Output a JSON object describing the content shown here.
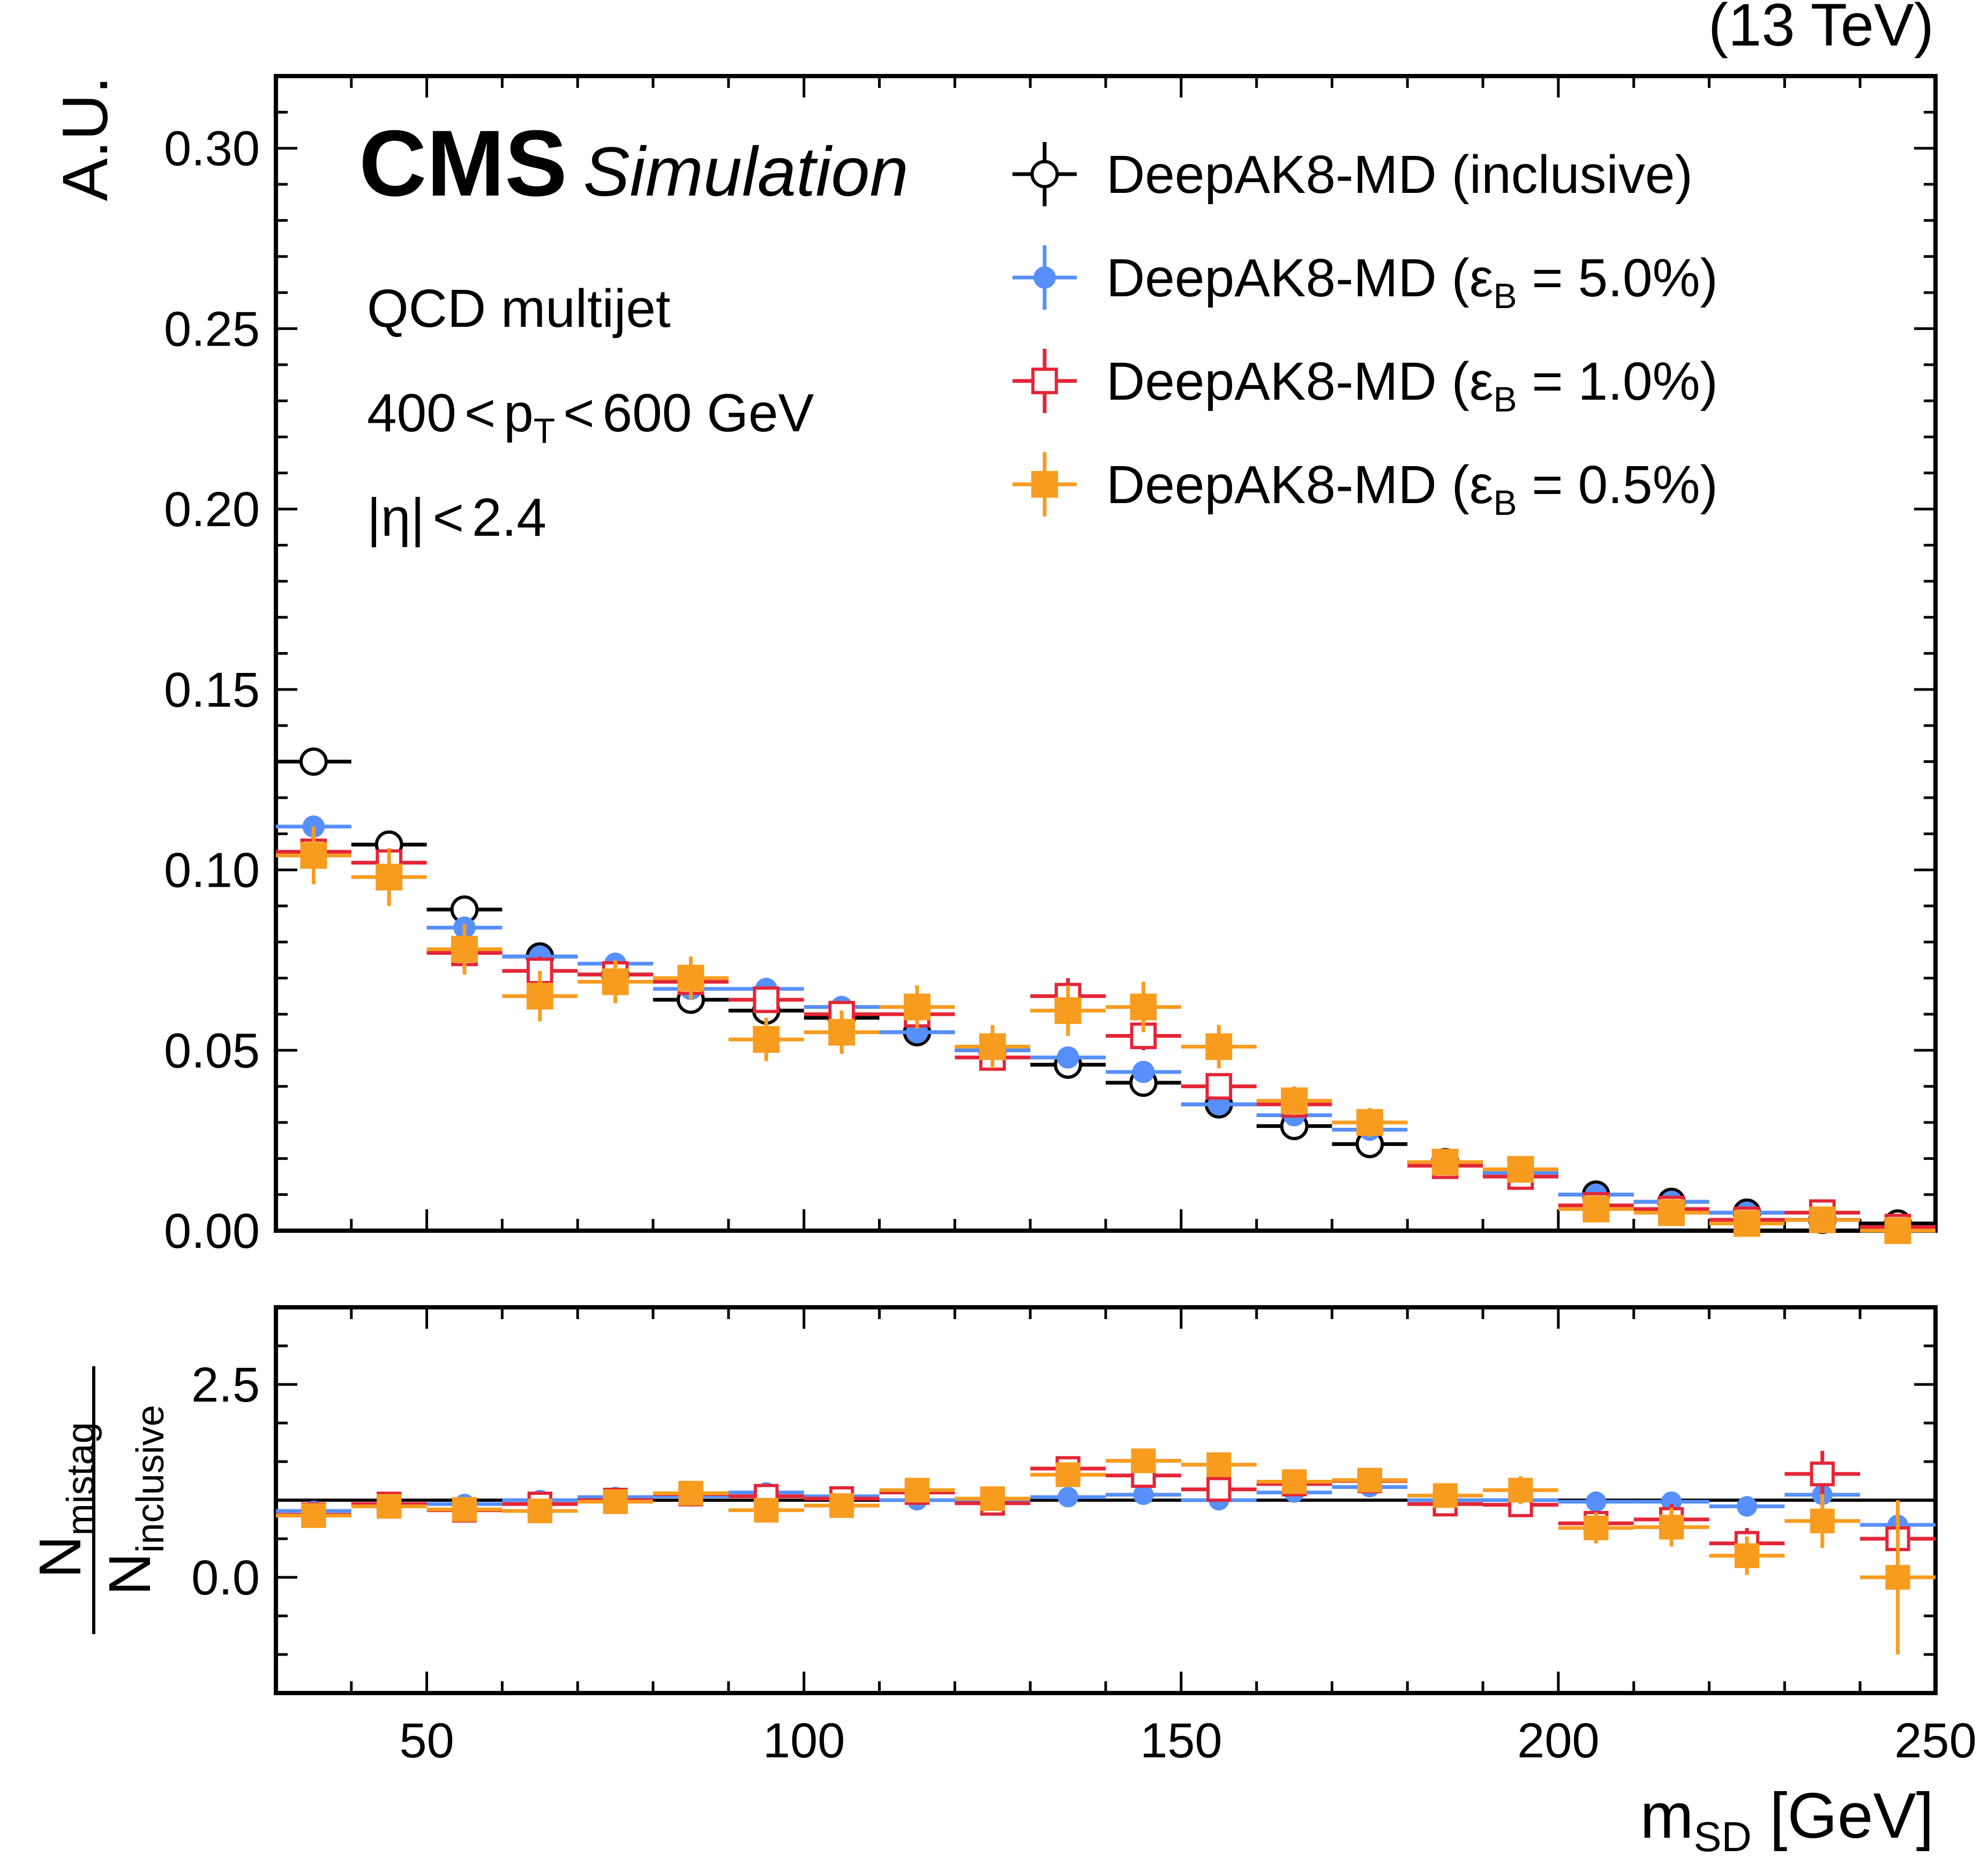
{
  "energy_label": "(13 TeV)",
  "cms_label": "CMS",
  "simulation_label": "Simulation",
  "info": {
    "process": "QCD multijet",
    "pt_pre": "400",
    "pt_lt": "<",
    "pt_p": "p",
    "pt_sub": "T",
    "pt_post": "600 GeV",
    "eta": "|η|",
    "eta_cut": "2.4"
  },
  "legend": {
    "entries": [
      {
        "main": "DeepAK8-MD (inclusive)",
        "eps": "",
        "sub": "",
        "rest": ""
      },
      {
        "main": "DeepAK8-MD (",
        "eps": "ε",
        "sub": "B",
        "rest": " = 5.0%)"
      },
      {
        "main": "DeepAK8-MD (",
        "eps": "ε",
        "sub": "B",
        "rest": " = 1.0%)"
      },
      {
        "main": "DeepAK8-MD (",
        "eps": "ε",
        "sub": "B",
        "rest": " = 0.5%)"
      }
    ]
  },
  "y_label_top": "A.U.",
  "y_label_ratio_num": "N",
  "y_label_ratio_num_sub": "mistag",
  "y_label_ratio_den": "N",
  "y_label_ratio_den_sub": "inclusive",
  "x_label_main": "m",
  "x_label_sub": "SD",
  "x_label_unit": " [GeV]",
  "colors": {
    "inclusive": "#000000",
    "eff5": "#5790fc",
    "eff1": "#e42536",
    "eff05": "#f89c20",
    "axis": "#000000"
  },
  "chart_data": [
    {
      "type": "scatter",
      "panel": "main",
      "xlabel": "m_SD [GeV]",
      "ylabel": "A.U.",
      "xlim": [
        30,
        250
      ],
      "ylim": [
        0,
        0.32
      ],
      "x_ticks": [
        50,
        100,
        150,
        200,
        250
      ],
      "y_ticks": [
        "0.00",
        "0.05",
        "0.10",
        "0.15",
        "0.20",
        "0.25",
        "0.30"
      ],
      "bin_edges": [
        30,
        40,
        50,
        60,
        70,
        80,
        90,
        100,
        110,
        120,
        130,
        140,
        150,
        160,
        170,
        180,
        190,
        200,
        210,
        220,
        230,
        240,
        250
      ],
      "x": [
        35,
        45,
        55,
        65,
        75,
        85,
        95,
        105,
        115,
        125,
        135,
        145,
        155,
        165,
        175,
        185,
        195,
        205,
        215,
        225,
        235,
        245
      ],
      "series": [
        {
          "name": "DeepAK8-MD (inclusive)",
          "marker": "open-circle",
          "color": "#000000",
          "values": [
            0.13,
            0.107,
            0.089,
            0.076,
            0.071,
            0.064,
            0.061,
            0.059,
            0.055,
            0.05,
            0.046,
            0.041,
            0.035,
            0.029,
            0.024,
            0.019,
            0.016,
            0.01,
            0.008,
            0.005,
            0.003,
            0.002
          ],
          "errors": [
            0,
            0,
            0,
            0,
            0,
            0,
            0,
            0,
            0,
            0,
            0,
            0,
            0,
            0,
            0,
            0,
            0,
            0,
            0,
            0,
            0,
            0
          ]
        },
        {
          "name": "DeepAK8-MD (εB = 5.0%)",
          "marker": "filled-circle",
          "color": "#5790fc",
          "values": [
            0.112,
            0.098,
            0.084,
            0.076,
            0.074,
            0.067,
            0.067,
            0.062,
            0.055,
            0.05,
            0.048,
            0.044,
            0.035,
            0.032,
            0.028,
            0.019,
            0.016,
            0.01,
            0.008,
            0.005,
            0.003,
            0.001
          ],
          "errors": [
            0.002,
            0.002,
            0.002,
            0.002,
            0.002,
            0.002,
            0.002,
            0.002,
            0.002,
            0.002,
            0.002,
            0.002,
            0.002,
            0.001,
            0.001,
            0.001,
            0.001,
            0.001,
            0.001,
            0.001,
            0.001,
            0.001
          ]
        },
        {
          "name": "DeepAK8-MD (εB = 1.0%)",
          "marker": "open-square",
          "color": "#e42536",
          "values": [
            0.105,
            0.102,
            0.077,
            0.072,
            0.071,
            0.069,
            0.064,
            0.06,
            0.06,
            0.048,
            0.065,
            0.054,
            0.04,
            0.035,
            0.03,
            0.018,
            0.015,
            0.007,
            0.006,
            0.003,
            0.005,
            0.001
          ],
          "errors": [
            0.004,
            0.004,
            0.004,
            0.004,
            0.003,
            0.003,
            0.003,
            0.003,
            0.003,
            0.003,
            0.005,
            0.004,
            0.003,
            0.003,
            0.003,
            0.002,
            0.002,
            0.002,
            0.002,
            0.001,
            0.002,
            0.001
          ]
        },
        {
          "name": "DeepAK8-MD (εB = 0.5%)",
          "marker": "filled-square",
          "color": "#f89c20",
          "values": [
            0.104,
            0.098,
            0.078,
            0.065,
            0.069,
            0.07,
            0.053,
            0.055,
            0.062,
            0.051,
            0.061,
            0.062,
            0.051,
            0.036,
            0.03,
            0.019,
            0.017,
            0.006,
            0.005,
            0.002,
            0.003,
            0.0
          ],
          "errors": [
            0.008,
            0.008,
            0.007,
            0.007,
            0.006,
            0.006,
            0.006,
            0.006,
            0.006,
            0.006,
            0.007,
            0.007,
            0.006,
            0.004,
            0.004,
            0.003,
            0.003,
            0.002,
            0.002,
            0.002,
            0.002,
            0.001
          ]
        }
      ]
    },
    {
      "type": "scatter",
      "panel": "ratio",
      "xlabel": "m_SD [GeV]",
      "ylabel": "N_mistag / N_inclusive",
      "xlim": [
        30,
        250
      ],
      "ylim": [
        -1.5,
        3.5
      ],
      "y_ticks": [
        "0.0",
        "2.5"
      ],
      "reference_line": 1.0,
      "x": [
        35,
        45,
        55,
        65,
        75,
        85,
        95,
        105,
        115,
        125,
        135,
        145,
        155,
        165,
        175,
        185,
        195,
        205,
        215,
        225,
        235,
        245
      ],
      "series": [
        {
          "name": "DeepAK8-MD (εB = 5.0%)",
          "marker": "filled-circle",
          "color": "#5790fc",
          "values": [
            0.86,
            0.92,
            0.95,
            1.0,
            1.04,
            1.05,
            1.1,
            1.05,
            1.0,
            1.0,
            1.04,
            1.07,
            1.0,
            1.1,
            1.17,
            1.0,
            1.0,
            0.98,
            0.98,
            0.92,
            1.07,
            0.68
          ],
          "errors": [
            0.02,
            0.02,
            0.02,
            0.02,
            0.02,
            0.02,
            0.03,
            0.03,
            0.03,
            0.03,
            0.03,
            0.03,
            0.04,
            0.04,
            0.05,
            0.05,
            0.06,
            0.06,
            0.07,
            0.1,
            0.15,
            0.2
          ]
        },
        {
          "name": "DeepAK8-MD (εB = 1.0%)",
          "marker": "open-square",
          "color": "#e42536",
          "values": [
            0.81,
            0.95,
            0.87,
            0.95,
            1.0,
            1.08,
            1.05,
            1.02,
            1.1,
            0.96,
            1.41,
            1.32,
            1.14,
            1.21,
            1.25,
            0.95,
            0.94,
            0.7,
            0.75,
            0.44,
            1.34,
            0.5
          ],
          "errors": [
            0.04,
            0.04,
            0.05,
            0.05,
            0.05,
            0.05,
            0.06,
            0.06,
            0.06,
            0.07,
            0.08,
            0.09,
            0.1,
            0.1,
            0.12,
            0.13,
            0.15,
            0.15,
            0.2,
            0.2,
            0.3,
            0.4
          ]
        },
        {
          "name": "DeepAK8-MD (εB = 0.5%)",
          "marker": "filled-square",
          "color": "#f89c20",
          "values": [
            0.8,
            0.92,
            0.88,
            0.86,
            0.98,
            1.09,
            0.87,
            0.93,
            1.13,
            1.02,
            1.33,
            1.51,
            1.46,
            1.24,
            1.26,
            1.06,
            1.13,
            0.64,
            0.65,
            0.28,
            0.73,
            0.0
          ],
          "errors": [
            0.06,
            0.06,
            0.07,
            0.08,
            0.08,
            0.08,
            0.09,
            0.09,
            0.1,
            0.1,
            0.12,
            0.12,
            0.13,
            0.13,
            0.15,
            0.16,
            0.18,
            0.2,
            0.25,
            0.25,
            0.35,
            1.0
          ]
        }
      ]
    }
  ]
}
